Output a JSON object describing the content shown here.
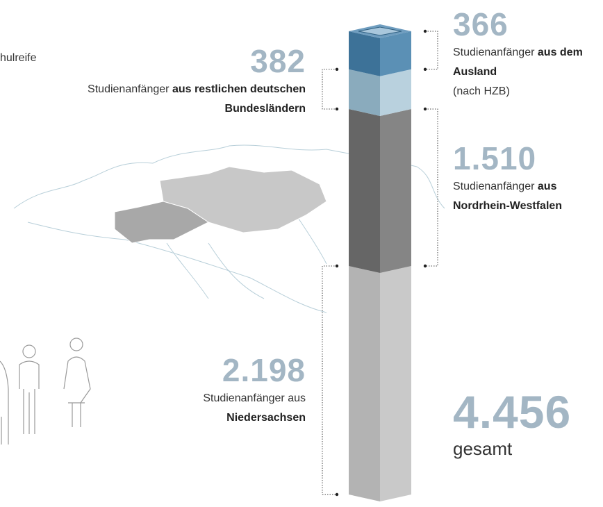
{
  "corner_text": "hulreife",
  "chart_data": {
    "type": "stacked-column",
    "segments": [
      {
        "value": 2198,
        "value_label": "2.198",
        "label": [
          {
            "text": "Studienanfänger aus",
            "bold": false
          },
          {
            "text": "Niedersachsen",
            "bold": true
          }
        ],
        "color_left": "#b3b3b3",
        "color_right": "#c9c9c9"
      },
      {
        "value": 1510,
        "value_label": "1.510",
        "label": [
          {
            "text": "Studienanfänger",
            "bold": false
          },
          {
            "text": "aus Nordrhein-Westfalen",
            "bold": true
          }
        ],
        "color_left": "#666666",
        "color_right": "#858585"
      },
      {
        "value": 382,
        "value_label": "382",
        "label": [
          {
            "text": "Studienanfänger",
            "bold": false
          },
          {
            "text": "aus restlichen deutschen Bundesländern",
            "bold": true
          }
        ],
        "color_left": "#8aabbd",
        "color_right": "#b9d1de"
      },
      {
        "value": 366,
        "value_label": "366",
        "label": [
          {
            "text": "Studienanfänger",
            "bold": false
          },
          {
            "text": "aus dem Ausland",
            "bold": true
          },
          {
            "text": "(nach HZB)",
            "bold": false,
            "newline": true
          }
        ],
        "color_left": "#3d7298",
        "color_right": "#5b90b5"
      }
    ],
    "total": {
      "value": 4456,
      "value_label": "4.456",
      "label": "gesamt"
    }
  }
}
